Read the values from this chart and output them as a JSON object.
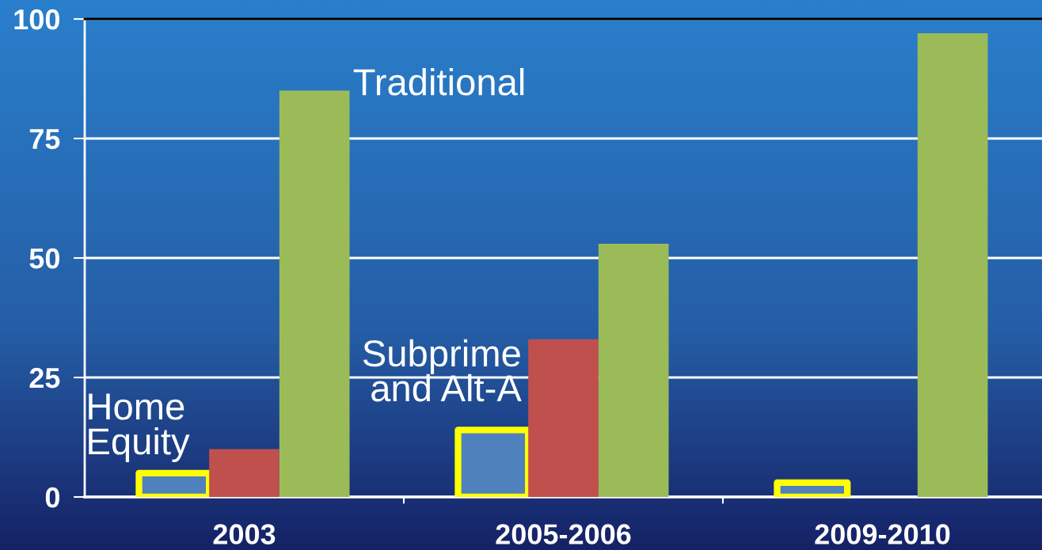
{
  "chart_data": {
    "type": "bar",
    "categories": [
      "2003",
      "2005-2006",
      "2009-2010"
    ],
    "series": [
      {
        "name": "Home\nEquity",
        "color": "#4f81bd",
        "values": [
          5,
          14,
          3
        ]
      },
      {
        "name": "Subprime\nand Alt-A",
        "color": "#c0504d",
        "values": [
          10,
          33,
          null
        ]
      },
      {
        "name": "Traditional",
        "color": "#9bbb59",
        "values": [
          85,
          53,
          97
        ]
      }
    ],
    "ylim": [
      0,
      100
    ],
    "yticks": [
      0,
      25,
      50,
      75,
      100
    ],
    "grid": "y",
    "legend": false
  }
}
